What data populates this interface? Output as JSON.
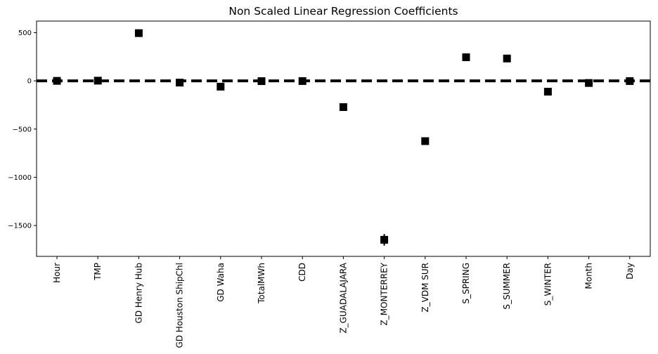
{
  "chart_data": {
    "type": "scatter",
    "title": "Non Scaled Linear Regression Coefficients",
    "xlabel": "",
    "ylabel": "",
    "categories": [
      "Hour",
      "TMP",
      "GD Henry Hub",
      "GD Houston ShipChl",
      "GD Waha",
      "TotalMWh",
      "CDD",
      "Z_GUADALAJARA",
      "Z_MONTERREY",
      "Z_VDM SUR",
      "S_SPRING",
      "S_SUMMER",
      "S_WINTER",
      "Month",
      "Day"
    ],
    "values": [
      0,
      2,
      495,
      -18,
      -60,
      -3,
      -2,
      -272,
      -1648,
      -625,
      245,
      232,
      -112,
      -22,
      -2
    ],
    "error": [
      8,
      8,
      8,
      8,
      8,
      8,
      8,
      8,
      60,
      15,
      8,
      8,
      8,
      8,
      8
    ],
    "ylim": [
      -1820,
      620
    ],
    "yticks": [
      500,
      0,
      -500,
      -1000,
      -1500
    ],
    "ytick_labels": [
      "500",
      "0",
      "−500",
      "−1000",
      "−1500"
    ],
    "reference_line": 0,
    "marker": "square",
    "marker_color": "#000000",
    "reference_line_color": "#000000",
    "grid": false
  }
}
